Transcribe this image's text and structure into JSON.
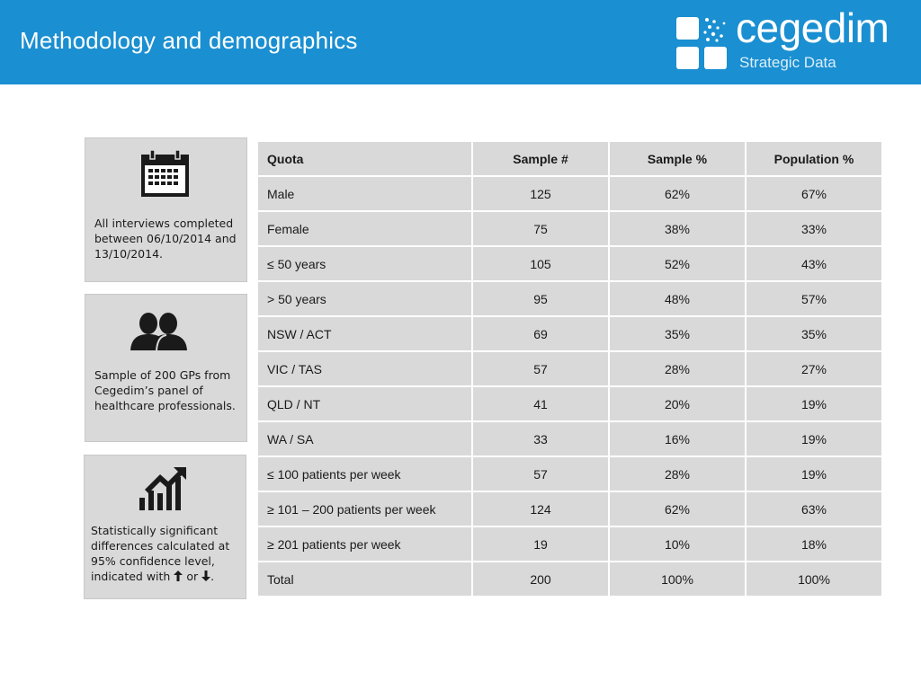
{
  "header": {
    "title": "Methodology and demographics",
    "brand": "cegedim",
    "brand_sub": "Strategic Data",
    "brand_color": "#1a8fd1"
  },
  "cards": [
    {
      "icon": "calendar-icon",
      "text": "All interviews completed between 06/10/2014 and 13/10/2014."
    },
    {
      "icon": "people-icon",
      "text": "Sample of 200 GPs from Cegedim’s panel of healthcare professionals."
    },
    {
      "icon": "chart-growth-icon",
      "text_main": "Statistically significant differences calculated at 95% confidence level, indicated with",
      "text_or": "or",
      "text_end": "."
    }
  ],
  "table": {
    "headers": [
      "Quota",
      "Sample #",
      "Sample %",
      "Population %"
    ],
    "rows": [
      [
        "Male",
        "125",
        "62%",
        "67%"
      ],
      [
        "Female",
        "75",
        "38%",
        "33%"
      ],
      [
        "≤ 50 years",
        "105",
        "52%",
        "43%"
      ],
      [
        "> 50 years",
        "95",
        "48%",
        "57%"
      ],
      [
        "NSW / ACT",
        "69",
        "35%",
        "35%"
      ],
      [
        "VIC / TAS",
        "57",
        "28%",
        "27%"
      ],
      [
        "QLD / NT",
        "41",
        "20%",
        "19%"
      ],
      [
        "WA / SA",
        "33",
        "16%",
        "19%"
      ],
      [
        "≤ 100 patients per week",
        "57",
        "28%",
        "19%"
      ],
      [
        "≥ 101 – 200 patients per week",
        "124",
        "62%",
        "63%"
      ],
      [
        "≥ 201 patients per week",
        "19",
        "10%",
        "18%"
      ],
      [
        "Total",
        "200",
        "100%",
        "100%"
      ]
    ]
  }
}
